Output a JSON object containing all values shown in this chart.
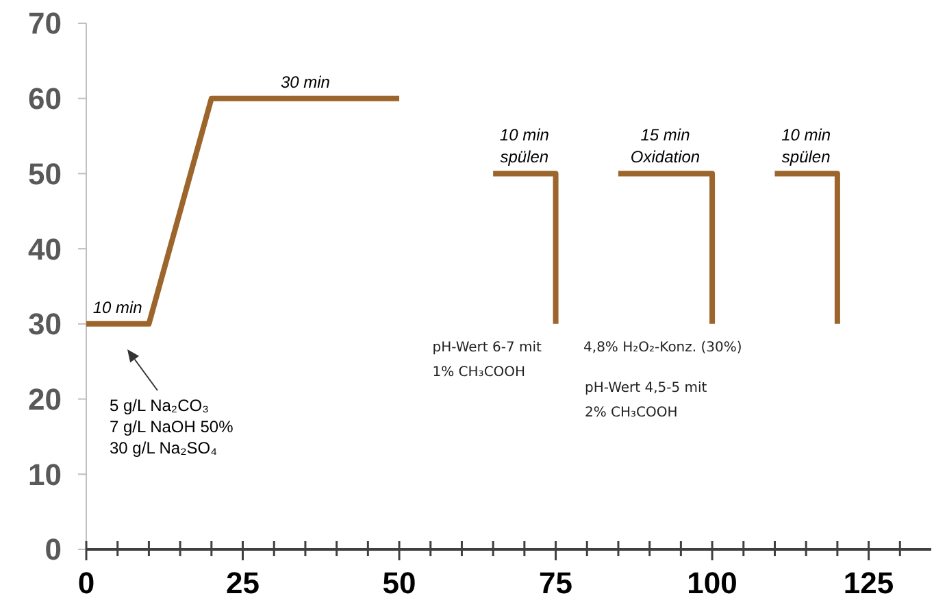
{
  "chart_data": {
    "type": "line",
    "x": [
      0,
      10,
      20,
      50,
      57,
      65,
      75,
      75,
      80,
      85,
      100,
      100,
      105,
      110,
      120,
      120
    ],
    "series": [
      {
        "color": "#9c652b",
        "values": [
          30,
          30,
          60,
          60,
          null,
          50,
          50,
          30,
          null,
          50,
          50,
          30,
          null,
          50,
          50,
          30
        ]
      }
    ],
    "xlim": [
      0,
      135
    ],
    "xticks": [
      0,
      {
        "value": 5,
        "label": null
      },
      {
        "value": 10,
        "label": null
      },
      {
        "value": 15,
        "label": null
      },
      {
        "value": 20,
        "label": null
      },
      25,
      {
        "value": 30,
        "label": null
      },
      {
        "value": 35,
        "label": null
      },
      {
        "value": 40,
        "label": null
      },
      {
        "value": 45,
        "label": null
      },
      50,
      {
        "value": 55,
        "label": null
      },
      {
        "value": 60,
        "label": null
      },
      {
        "value": 65,
        "label": null
      },
      {
        "value": 70,
        "label": null
      },
      75,
      {
        "value": 80,
        "label": null
      },
      {
        "value": 85,
        "label": null
      },
      {
        "value": 90,
        "label": null
      },
      {
        "value": 95,
        "label": null
      },
      100,
      {
        "value": 105,
        "label": null
      },
      {
        "value": 110,
        "label": null
      },
      {
        "value": 115,
        "label": null
      },
      {
        "value": 120,
        "label": null
      },
      125,
      {
        "value": 130,
        "label": null
      }
    ],
    "ylim": [
      0,
      70
    ],
    "yticks": [
      0,
      10,
      20,
      30,
      40,
      50,
      60,
      70
    ],
    "annotations": [
      {
        "text": "10 min",
        "x": 5,
        "y": 30
      },
      {
        "text": "30 min",
        "x": 35,
        "y": 60
      },
      {
        "text": "10 min\nspülen",
        "x": 70,
        "y": 50
      },
      {
        "text": "15 min\nOxidation",
        "x": 92.5,
        "y": 50
      },
      {
        "text": "10 min\nspülen",
        "x": 115,
        "y": 50
      },
      "5 g/L Na₂CO₃\n7 g/L NaOH 50%\n30 g/L Na₂SO₄",
      {
        "text": "pH-Wert 6-7 mit\n1% CH₃COOH",
        "x": 75,
        "y": 30
      },
      {
        "text": "4,8% H₂O₂-Konz. (30%)",
        "x": 100,
        "y": 30
      },
      "pH-Wert 4,5-5 mit\n2% CH₃COOH"
    ]
  }
}
